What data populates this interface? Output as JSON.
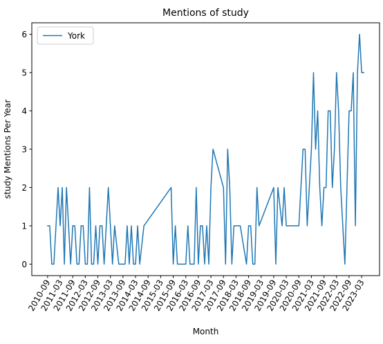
{
  "chart_data": {
    "type": "line",
    "title": "Mentions of study",
    "xlabel": "Month",
    "ylabel": "study Mentions Per Year",
    "ylim": [
      -0.3,
      6.3
    ],
    "yticks": [
      0,
      1,
      2,
      3,
      4,
      5,
      6
    ],
    "xticks": [
      "2010-09",
      "2011-03",
      "2011-09",
      "2012-03",
      "2012-09",
      "2013-03",
      "2013-09",
      "2014-03",
      "2014-09",
      "2015-03",
      "2015-09",
      "2016-03",
      "2016-09",
      "2017-03",
      "2017-09",
      "2018-03",
      "2018-09",
      "2019-03",
      "2019-09",
      "2020-03",
      "2020-09",
      "2021-03",
      "2021-09",
      "2022-03",
      "2022-09",
      "2023-03"
    ],
    "x_tick_rotation": 60,
    "legend": {
      "placement": "top-left",
      "entries": [
        "York"
      ]
    },
    "grid": false,
    "series": [
      {
        "name": "York",
        "color": "#1f77b4",
        "points": [
          [
            "2010-09",
            1
          ],
          [
            "2010-10",
            1
          ],
          [
            "2010-11",
            0
          ],
          [
            "2010-12",
            0
          ],
          [
            "2011-01",
            1
          ],
          [
            "2011-02",
            2
          ],
          [
            "2011-03",
            1
          ],
          [
            "2011-04",
            2
          ],
          [
            "2011-05",
            0
          ],
          [
            "2011-06",
            2
          ],
          [
            "2011-07",
            1
          ],
          [
            "2011-08",
            0
          ],
          [
            "2011-09",
            1
          ],
          [
            "2011-10",
            1
          ],
          [
            "2011-11",
            0
          ],
          [
            "2011-12",
            0
          ],
          [
            "2012-01",
            1
          ],
          [
            "2012-02",
            1
          ],
          [
            "2012-03",
            0
          ],
          [
            "2012-04",
            0
          ],
          [
            "2012-05",
            2
          ],
          [
            "2012-06",
            0
          ],
          [
            "2012-07",
            0
          ],
          [
            "2012-08",
            1
          ],
          [
            "2012-09",
            0
          ],
          [
            "2012-10",
            1
          ],
          [
            "2012-11",
            1
          ],
          [
            "2012-12",
            0
          ],
          [
            "2013-01",
            1
          ],
          [
            "2013-02",
            2
          ],
          [
            "2013-03",
            1
          ],
          [
            "2013-04",
            0
          ],
          [
            "2013-05",
            1
          ],
          [
            "2013-06",
            0.5
          ],
          [
            "2013-07",
            0
          ],
          [
            "2013-08",
            0
          ],
          [
            "2013-09",
            0
          ],
          [
            "2013-10",
            0
          ],
          [
            "2013-11",
            1
          ],
          [
            "2013-12",
            0
          ],
          [
            "2014-01",
            1
          ],
          [
            "2014-02",
            0
          ],
          [
            "2014-03",
            0
          ],
          [
            "2014-04",
            1
          ],
          [
            "2014-05",
            0
          ],
          [
            "2014-07",
            1
          ],
          [
            "2015-08",
            2
          ],
          [
            "2015-09",
            0
          ],
          [
            "2015-10",
            1
          ],
          [
            "2015-11",
            0
          ],
          [
            "2016-03",
            0
          ],
          [
            "2016-04",
            1
          ],
          [
            "2016-05",
            0
          ],
          [
            "2016-06",
            0
          ],
          [
            "2016-07",
            0
          ],
          [
            "2016-08",
            2
          ],
          [
            "2016-09",
            0
          ],
          [
            "2016-10",
            1
          ],
          [
            "2016-11",
            1
          ],
          [
            "2016-12",
            0
          ],
          [
            "2017-01",
            1
          ],
          [
            "2017-02",
            0
          ],
          [
            "2017-03",
            2
          ],
          [
            "2017-04",
            3
          ],
          [
            "2017-09",
            2
          ],
          [
            "2017-10",
            0
          ],
          [
            "2017-11",
            3
          ],
          [
            "2017-12",
            2
          ],
          [
            "2018-01",
            0
          ],
          [
            "2018-02",
            1
          ],
          [
            "2018-03",
            1
          ],
          [
            "2018-04",
            1
          ],
          [
            "2018-05",
            1
          ],
          [
            "2018-08",
            0
          ],
          [
            "2018-09",
            1
          ],
          [
            "2018-10",
            1
          ],
          [
            "2018-11",
            0
          ],
          [
            "2018-12",
            0
          ],
          [
            "2019-01",
            2
          ],
          [
            "2019-02",
            1
          ],
          [
            "2019-09",
            2
          ],
          [
            "2019-10",
            0
          ],
          [
            "2019-11",
            2
          ],
          [
            "2019-12",
            1.5
          ],
          [
            "2020-01",
            1
          ],
          [
            "2020-02",
            2
          ],
          [
            "2020-03",
            1
          ],
          [
            "2020-09",
            1
          ],
          [
            "2020-10",
            2
          ],
          [
            "2020-11",
            3
          ],
          [
            "2020-12",
            3
          ],
          [
            "2021-01",
            1
          ],
          [
            "2021-03",
            3
          ],
          [
            "2021-04",
            5
          ],
          [
            "2021-05",
            3
          ],
          [
            "2021-06",
            4
          ],
          [
            "2021-07",
            2
          ],
          [
            "2021-08",
            1
          ],
          [
            "2021-09",
            2
          ],
          [
            "2021-10",
            2
          ],
          [
            "2021-11",
            4
          ],
          [
            "2021-12",
            4
          ],
          [
            "2022-01",
            2
          ],
          [
            "2022-02",
            3
          ],
          [
            "2022-03",
            5
          ],
          [
            "2022-04",
            4
          ],
          [
            "2022-05",
            2
          ],
          [
            "2022-07",
            0
          ],
          [
            "2022-08",
            2
          ],
          [
            "2022-09",
            4
          ],
          [
            "2022-10",
            4
          ],
          [
            "2022-11",
            5
          ],
          [
            "2022-12",
            1
          ],
          [
            "2023-01",
            5
          ],
          [
            "2023-02",
            6
          ],
          [
            "2023-03",
            5
          ],
          [
            "2023-04",
            5
          ]
        ]
      }
    ]
  }
}
